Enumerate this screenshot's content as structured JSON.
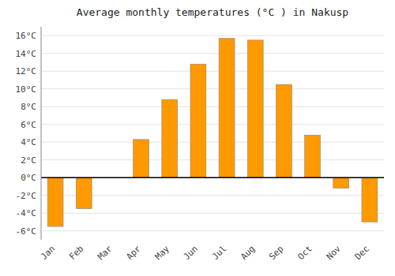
{
  "chart_data": {
    "type": "bar",
    "title": "Average monthly temperatures (°C ) in Nakusp",
    "categories": [
      "Jan",
      "Feb",
      "Mar",
      "Apr",
      "May",
      "Jun",
      "Jul",
      "Aug",
      "Sep",
      "Oct",
      "Nov",
      "Dec"
    ],
    "values": [
      -5.5,
      -3.5,
      0.0,
      4.3,
      8.8,
      12.8,
      15.7,
      15.5,
      10.5,
      4.8,
      -1.2,
      -5.0
    ],
    "color": "#FF9900",
    "ylim": [
      -7,
      17
    ],
    "yticks": [
      {
        "value": -6,
        "label": "-6°C"
      },
      {
        "value": -4,
        "label": "-4°C"
      },
      {
        "value": -2,
        "label": "-2°C"
      },
      {
        "value": 0,
        "label": "0°C"
      },
      {
        "value": 2,
        "label": "2°C"
      },
      {
        "value": 4,
        "label": "4°C"
      },
      {
        "value": 6,
        "label": "6°C"
      },
      {
        "value": 8,
        "label": "8°C"
      },
      {
        "value": 10,
        "label": "10°C"
      },
      {
        "value": 12,
        "label": "12°C"
      },
      {
        "value": 14,
        "label": "14°C"
      },
      {
        "value": 16,
        "label": "16°C"
      }
    ],
    "grid": true
  }
}
